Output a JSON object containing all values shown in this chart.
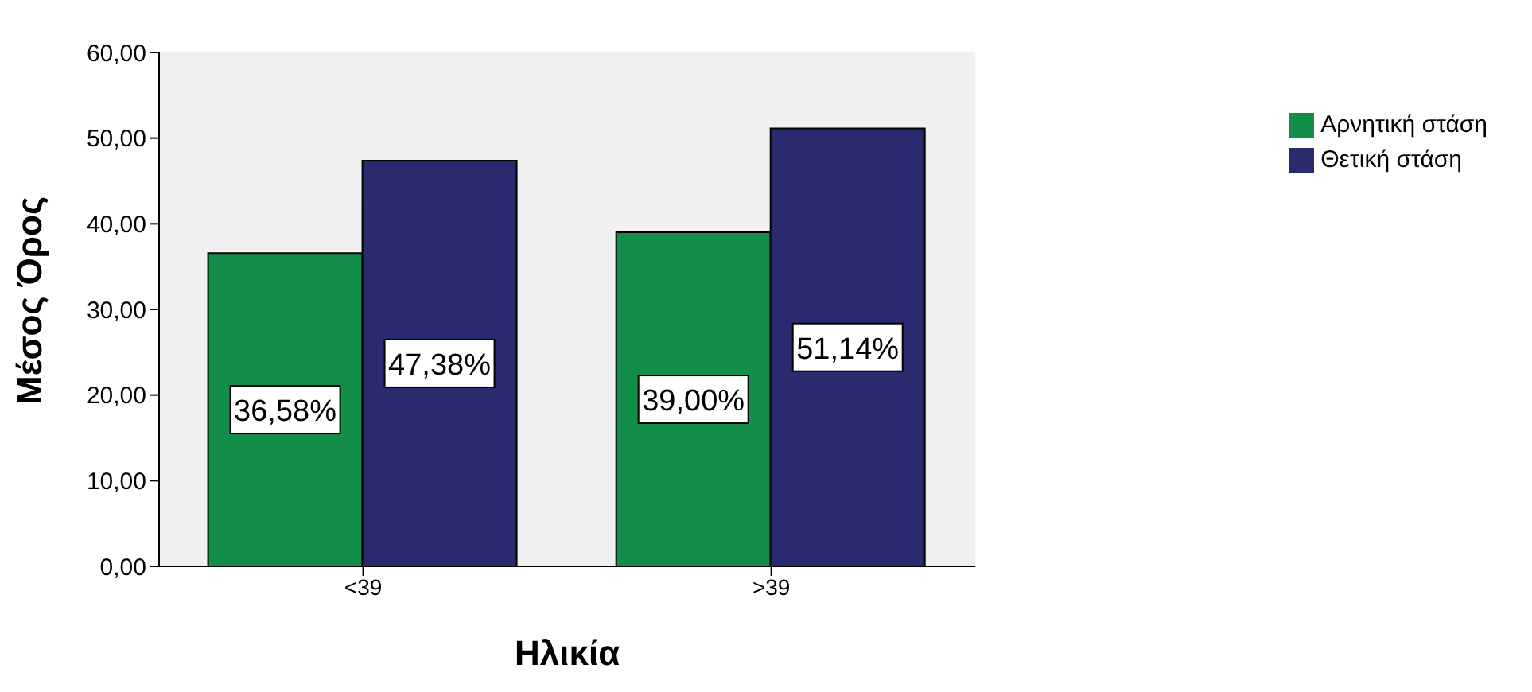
{
  "chart_data": {
    "type": "bar",
    "xlabel": "Ηλικία",
    "ylabel": "Μέσος Όρος",
    "categories": [
      "<39",
      ">39"
    ],
    "series": [
      {
        "name": "Αρνητική στάση",
        "color": "#138d4a",
        "values": [
          36.58,
          39.0
        ],
        "value_labels": [
          "36,58%",
          "39,00%"
        ]
      },
      {
        "name": "Θετική στάση",
        "color": "#2a2a6e",
        "values": [
          47.38,
          51.14
        ],
        "value_labels": [
          "47,38%",
          "51,14%"
        ]
      }
    ],
    "ylim": [
      0,
      60
    ],
    "yticks": [
      {
        "value": 0,
        "label": "0,00"
      },
      {
        "value": 10,
        "label": "10,00"
      },
      {
        "value": 20,
        "label": "20,00"
      },
      {
        "value": 30,
        "label": "30,00"
      },
      {
        "value": 40,
        "label": "40,00"
      },
      {
        "value": 50,
        "label": "50,00"
      },
      {
        "value": 60,
        "label": "60,00"
      }
    ],
    "grid": false,
    "legend": "top right"
  }
}
